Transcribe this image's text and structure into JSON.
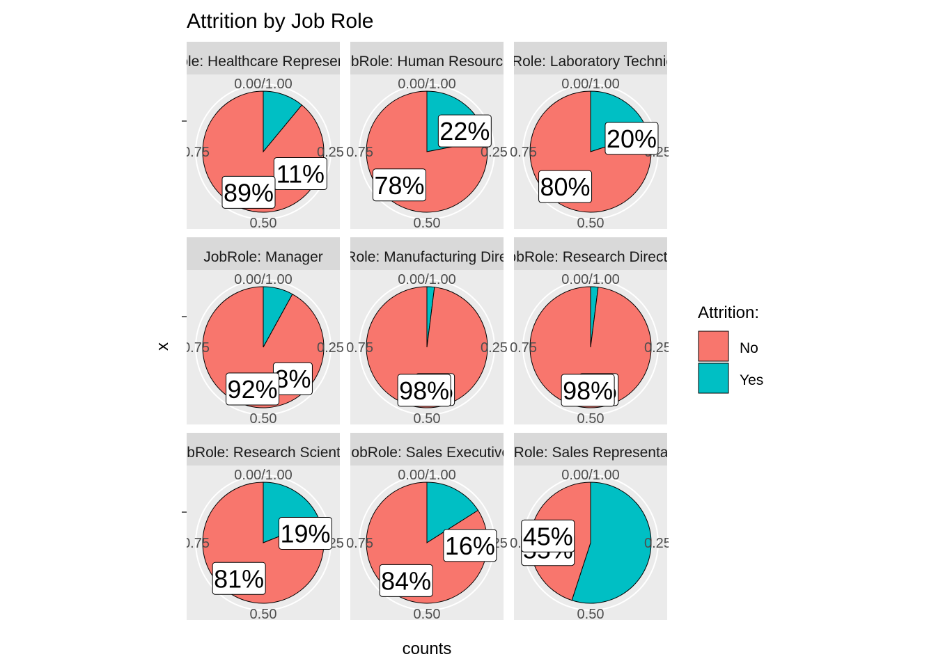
{
  "chart_data": {
    "type": "pie",
    "title": "Attrition by Job Role",
    "xlabel": "counts",
    "ylabel": "x",
    "legend": {
      "title": "Attrition:",
      "position": "right",
      "entries": [
        {
          "label": "No",
          "color": "#F8766D"
        },
        {
          "label": "Yes",
          "color": "#00BFC4"
        }
      ]
    },
    "theta_ticks": [
      "0.00/1.00",
      "0.25",
      "0.50",
      "0.75"
    ],
    "facet_label_prefix": "JobRole: ",
    "facets": [
      {
        "strip": "JobRole: Healthcare Representative",
        "no": 89,
        "yes": 11,
        "no_label": "89%",
        "yes_label": "11%"
      },
      {
        "strip": "JobRole: Human Resources",
        "no": 78,
        "yes": 22,
        "no_label": "78%",
        "yes_label": "22%"
      },
      {
        "strip": "JobRole: Laboratory Technician",
        "no": 80,
        "yes": 20,
        "no_label": "80%",
        "yes_label": "20%"
      },
      {
        "strip": "JobRole: Manager",
        "no": 92,
        "yes": 8,
        "no_label": "92%",
        "yes_label": "8%"
      },
      {
        "strip": "JobRole: Manufacturing Director",
        "no": 98,
        "yes": 2,
        "no_label": "98%",
        "yes_label": "2%"
      },
      {
        "strip": "JobRole: Research Director",
        "no": 98,
        "yes": 2,
        "no_label": "98%",
        "yes_label": "2%"
      },
      {
        "strip": "JobRole: Research Scientist",
        "no": 81,
        "yes": 19,
        "no_label": "81%",
        "yes_label": "19%"
      },
      {
        "strip": "JobRole: Sales Executive",
        "no": 84,
        "yes": 16,
        "no_label": "84%",
        "yes_label": "16%"
      },
      {
        "strip": "JobRole: Sales Representative",
        "no": 45,
        "yes": 55,
        "no_label": "45%",
        "yes_label": "55%"
      }
    ]
  }
}
